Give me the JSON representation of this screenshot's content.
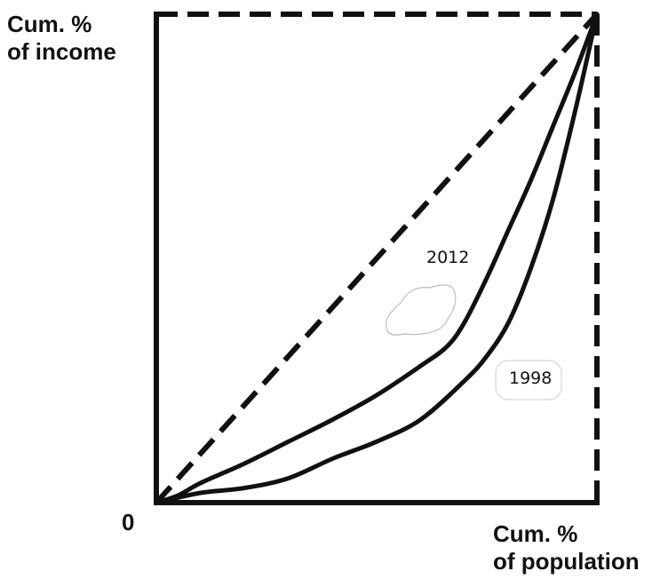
{
  "chart_data": {
    "type": "line",
    "title": "",
    "ylabel_lines": [
      "Cum. %",
      "of income"
    ],
    "xlabel_lines": [
      "Cum. %",
      "of population"
    ],
    "origin_label": "0",
    "xlim": [
      0,
      100
    ],
    "ylim": [
      0,
      100
    ],
    "grid": false,
    "equality_line": {
      "style": "dashed",
      "points": [
        [
          0,
          0
        ],
        [
          100,
          100
        ]
      ]
    },
    "series": [
      {
        "name": "2012",
        "x": [
          0,
          5,
          10,
          20,
          30,
          40,
          50,
          60,
          66,
          70,
          75,
          80,
          85,
          90,
          95,
          100
        ],
        "y": [
          0,
          1.5,
          4,
          8,
          12.5,
          17,
          22,
          28,
          32,
          37,
          46,
          56,
          66,
          77,
          88,
          100
        ]
      },
      {
        "name": "1998",
        "x": [
          0,
          10,
          20,
          30,
          40,
          50,
          60,
          70,
          75,
          80,
          85,
          90,
          95,
          100
        ],
        "y": [
          0,
          2,
          3,
          5,
          9,
          12.5,
          17,
          25,
          30,
          37,
          48,
          62,
          80,
          100
        ]
      }
    ]
  }
}
